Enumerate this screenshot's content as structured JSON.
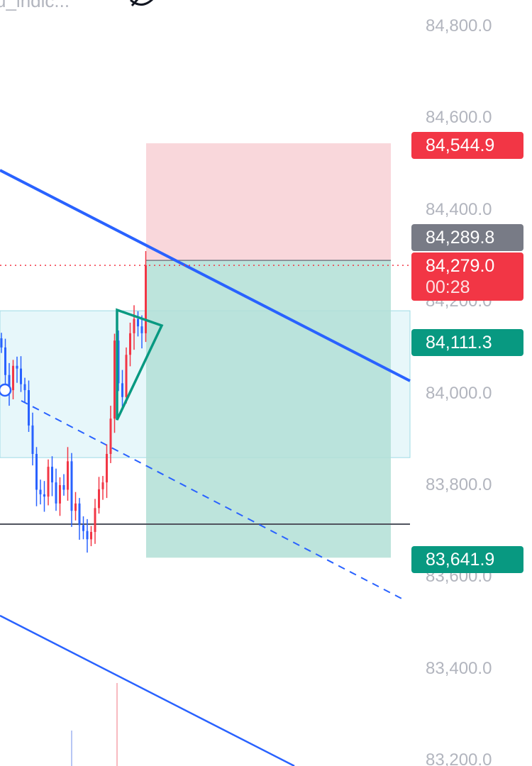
{
  "header": {
    "symbol_fragment": "u_indic...",
    "hide_icon": "eye-off-icon"
  },
  "colors": {
    "up": "#f23645",
    "down": "#2962ff",
    "stop_zone": "#f7c9cf",
    "target_zone": "#b2dfd6",
    "range_zone": "#d7f1f7",
    "trend": "#2962ff",
    "triangle": "#089981",
    "label_red": "#f23645",
    "label_gray": "#787b86",
    "label_green": "#089981"
  },
  "chart_data": {
    "type": "candlestick",
    "ylim": [
      83170,
      84860
    ],
    "y_ticks": [
      "84,800.0",
      "84,600.0",
      "84,400.0",
      "84,200.0",
      "84,000.0",
      "83,800.0",
      "83,600.0",
      "83,400.0",
      "83,200.0"
    ],
    "y_tick_values": [
      84800,
      84600,
      84400,
      84200,
      84000,
      83800,
      83600,
      83400,
      83200
    ],
    "closes": [
      84100,
      84040,
      84007,
      84060,
      84054,
      84020,
      84007,
      83930,
      83868,
      83790,
      83780,
      83775,
      83840,
      83806,
      83760,
      83800,
      83790,
      83852,
      83744,
      83760,
      83713,
      83700,
      83682,
      83698,
      83750,
      83791,
      83806,
      83868,
      83945,
      84115,
      84022,
      83992,
      84084,
      84131,
      84162,
      84146,
      84131,
      84279
    ],
    "current_price": {
      "value": "84,279.0",
      "countdown": "00:28",
      "price": 84279.0
    },
    "position": {
      "stop": {
        "label": "84,544.9",
        "price": 84544.9
      },
      "entry": {
        "label": "84,289.8",
        "price": 84289.8
      },
      "target": {
        "label": "83,641.9",
        "price": 83641.9
      }
    },
    "triangle_label": {
      "label": "84,111.3",
      "price": 84111.3
    },
    "range_zone": [
      84180,
      83860
    ],
    "horizontal_line": 83715
  }
}
